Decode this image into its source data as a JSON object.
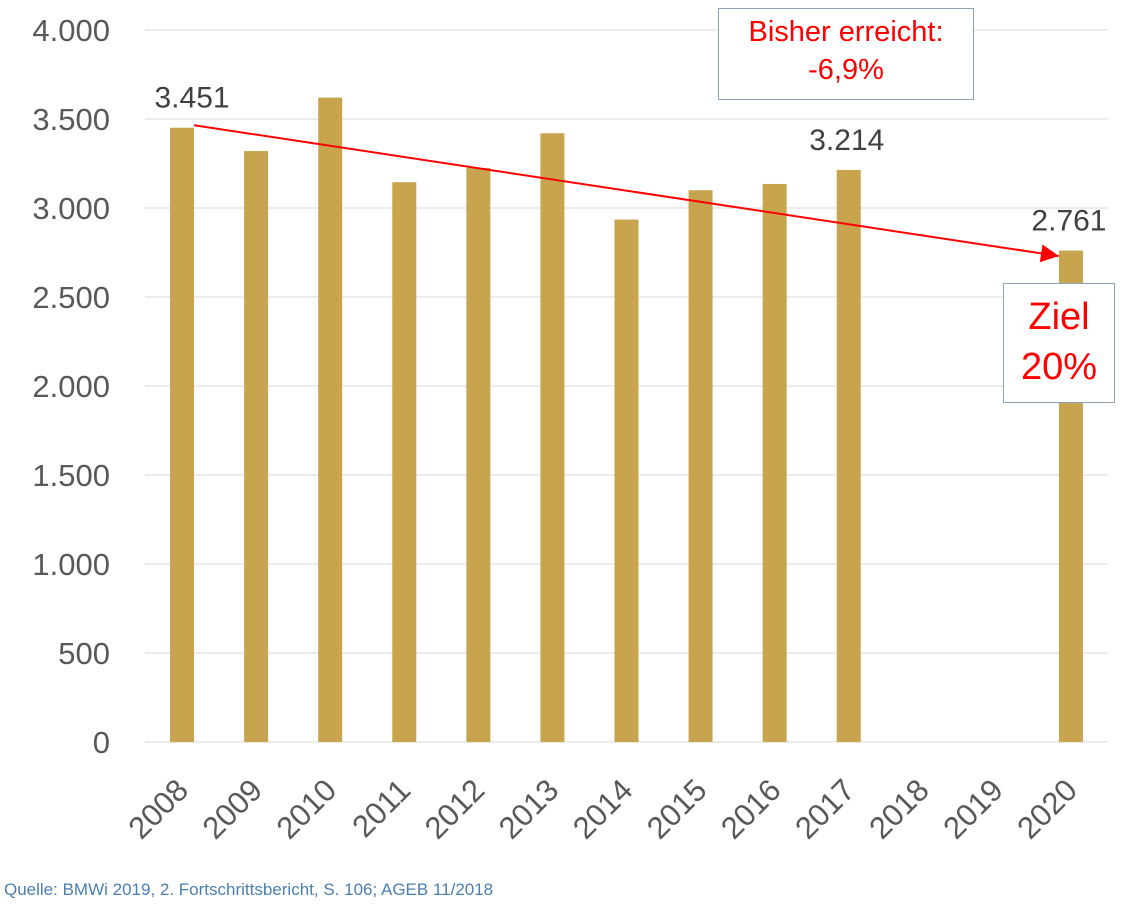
{
  "chart_data": {
    "type": "bar",
    "categories": [
      "2008",
      "2009",
      "2010",
      "2011",
      "2012",
      "2013",
      "2014",
      "2015",
      "2016",
      "2017",
      "2018",
      "2019",
      "2020"
    ],
    "values": [
      3451,
      3320,
      3620,
      3145,
      3225,
      3420,
      2935,
      3100,
      3135,
      3214,
      null,
      null,
      2761
    ],
    "data_labels": [
      {
        "category": "2008",
        "text": "3.451"
      },
      {
        "category": "2017",
        "text": "3.214"
      },
      {
        "category": "2020",
        "text": "2.761"
      }
    ],
    "ylim": [
      0,
      4000
    ],
    "yticks": [
      0,
      500,
      1000,
      1500,
      2000,
      2500,
      3000,
      3500,
      4000
    ],
    "ytick_labels": [
      "0",
      "500",
      "1.000",
      "1.500",
      "2.000",
      "2.500",
      "3.000",
      "3.500",
      "4.000"
    ],
    "grid": true,
    "bar_color": "#c8a44e",
    "trend_arrow": {
      "from": {
        "x": "2008",
        "y": 3465
      },
      "to": {
        "x": "2020",
        "y": 2730
      },
      "color": "#ff0000"
    }
  },
  "annotations": {
    "progress_line1": "Bisher erreicht:",
    "progress_line2": "-6,9%",
    "target_line1": "Ziel",
    "target_line2": "20%"
  },
  "source": "Quelle: BMWi 2019, 2. Fortschrittsbericht, S. 106; AGEB 11/2018"
}
